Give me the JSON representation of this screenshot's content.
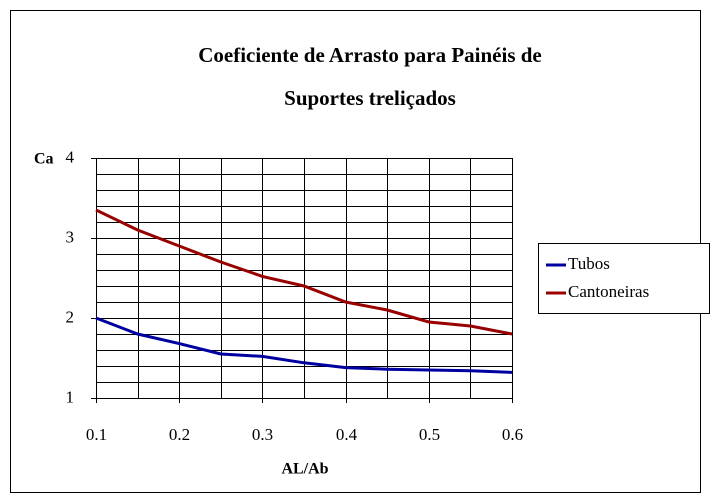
{
  "chart_data": {
    "type": "line",
    "title": [
      "Coeficiente de Arrasto para Painéis de",
      "Suportes treliçados"
    ],
    "x_label": "AL/Ab",
    "y_label": "Ca",
    "x": [
      0.1,
      0.15,
      0.2,
      0.25,
      0.3,
      0.35,
      0.4,
      0.45,
      0.5,
      0.55,
      0.6
    ],
    "series": [
      {
        "name": "Tubos",
        "color": "#0000a0",
        "values": [
          2.0,
          1.8,
          1.68,
          1.55,
          1.52,
          1.44,
          1.38,
          1.36,
          1.35,
          1.34,
          1.32
        ]
      },
      {
        "name": "Cantoneiras",
        "color": "#990000",
        "values": [
          3.35,
          3.1,
          2.9,
          2.7,
          2.52,
          2.4,
          2.2,
          2.1,
          1.95,
          1.9,
          1.8
        ]
      }
    ],
    "xlim": [
      0.1,
      0.6
    ],
    "xticks": [
      0.1,
      0.2,
      0.3,
      0.4,
      0.5,
      0.6
    ],
    "x_minor_ticks": [
      0.15,
      0.25,
      0.35,
      0.45,
      0.55
    ],
    "ylim": [
      1,
      4
    ],
    "yticks": [
      1,
      2,
      3,
      4
    ],
    "y_minor_ticks": [
      1.2,
      1.4,
      1.6,
      1.8,
      2.2,
      2.4,
      2.6,
      2.8,
      3.2,
      3.4,
      3.6,
      3.8
    ],
    "grid": true,
    "legend": "right"
  }
}
